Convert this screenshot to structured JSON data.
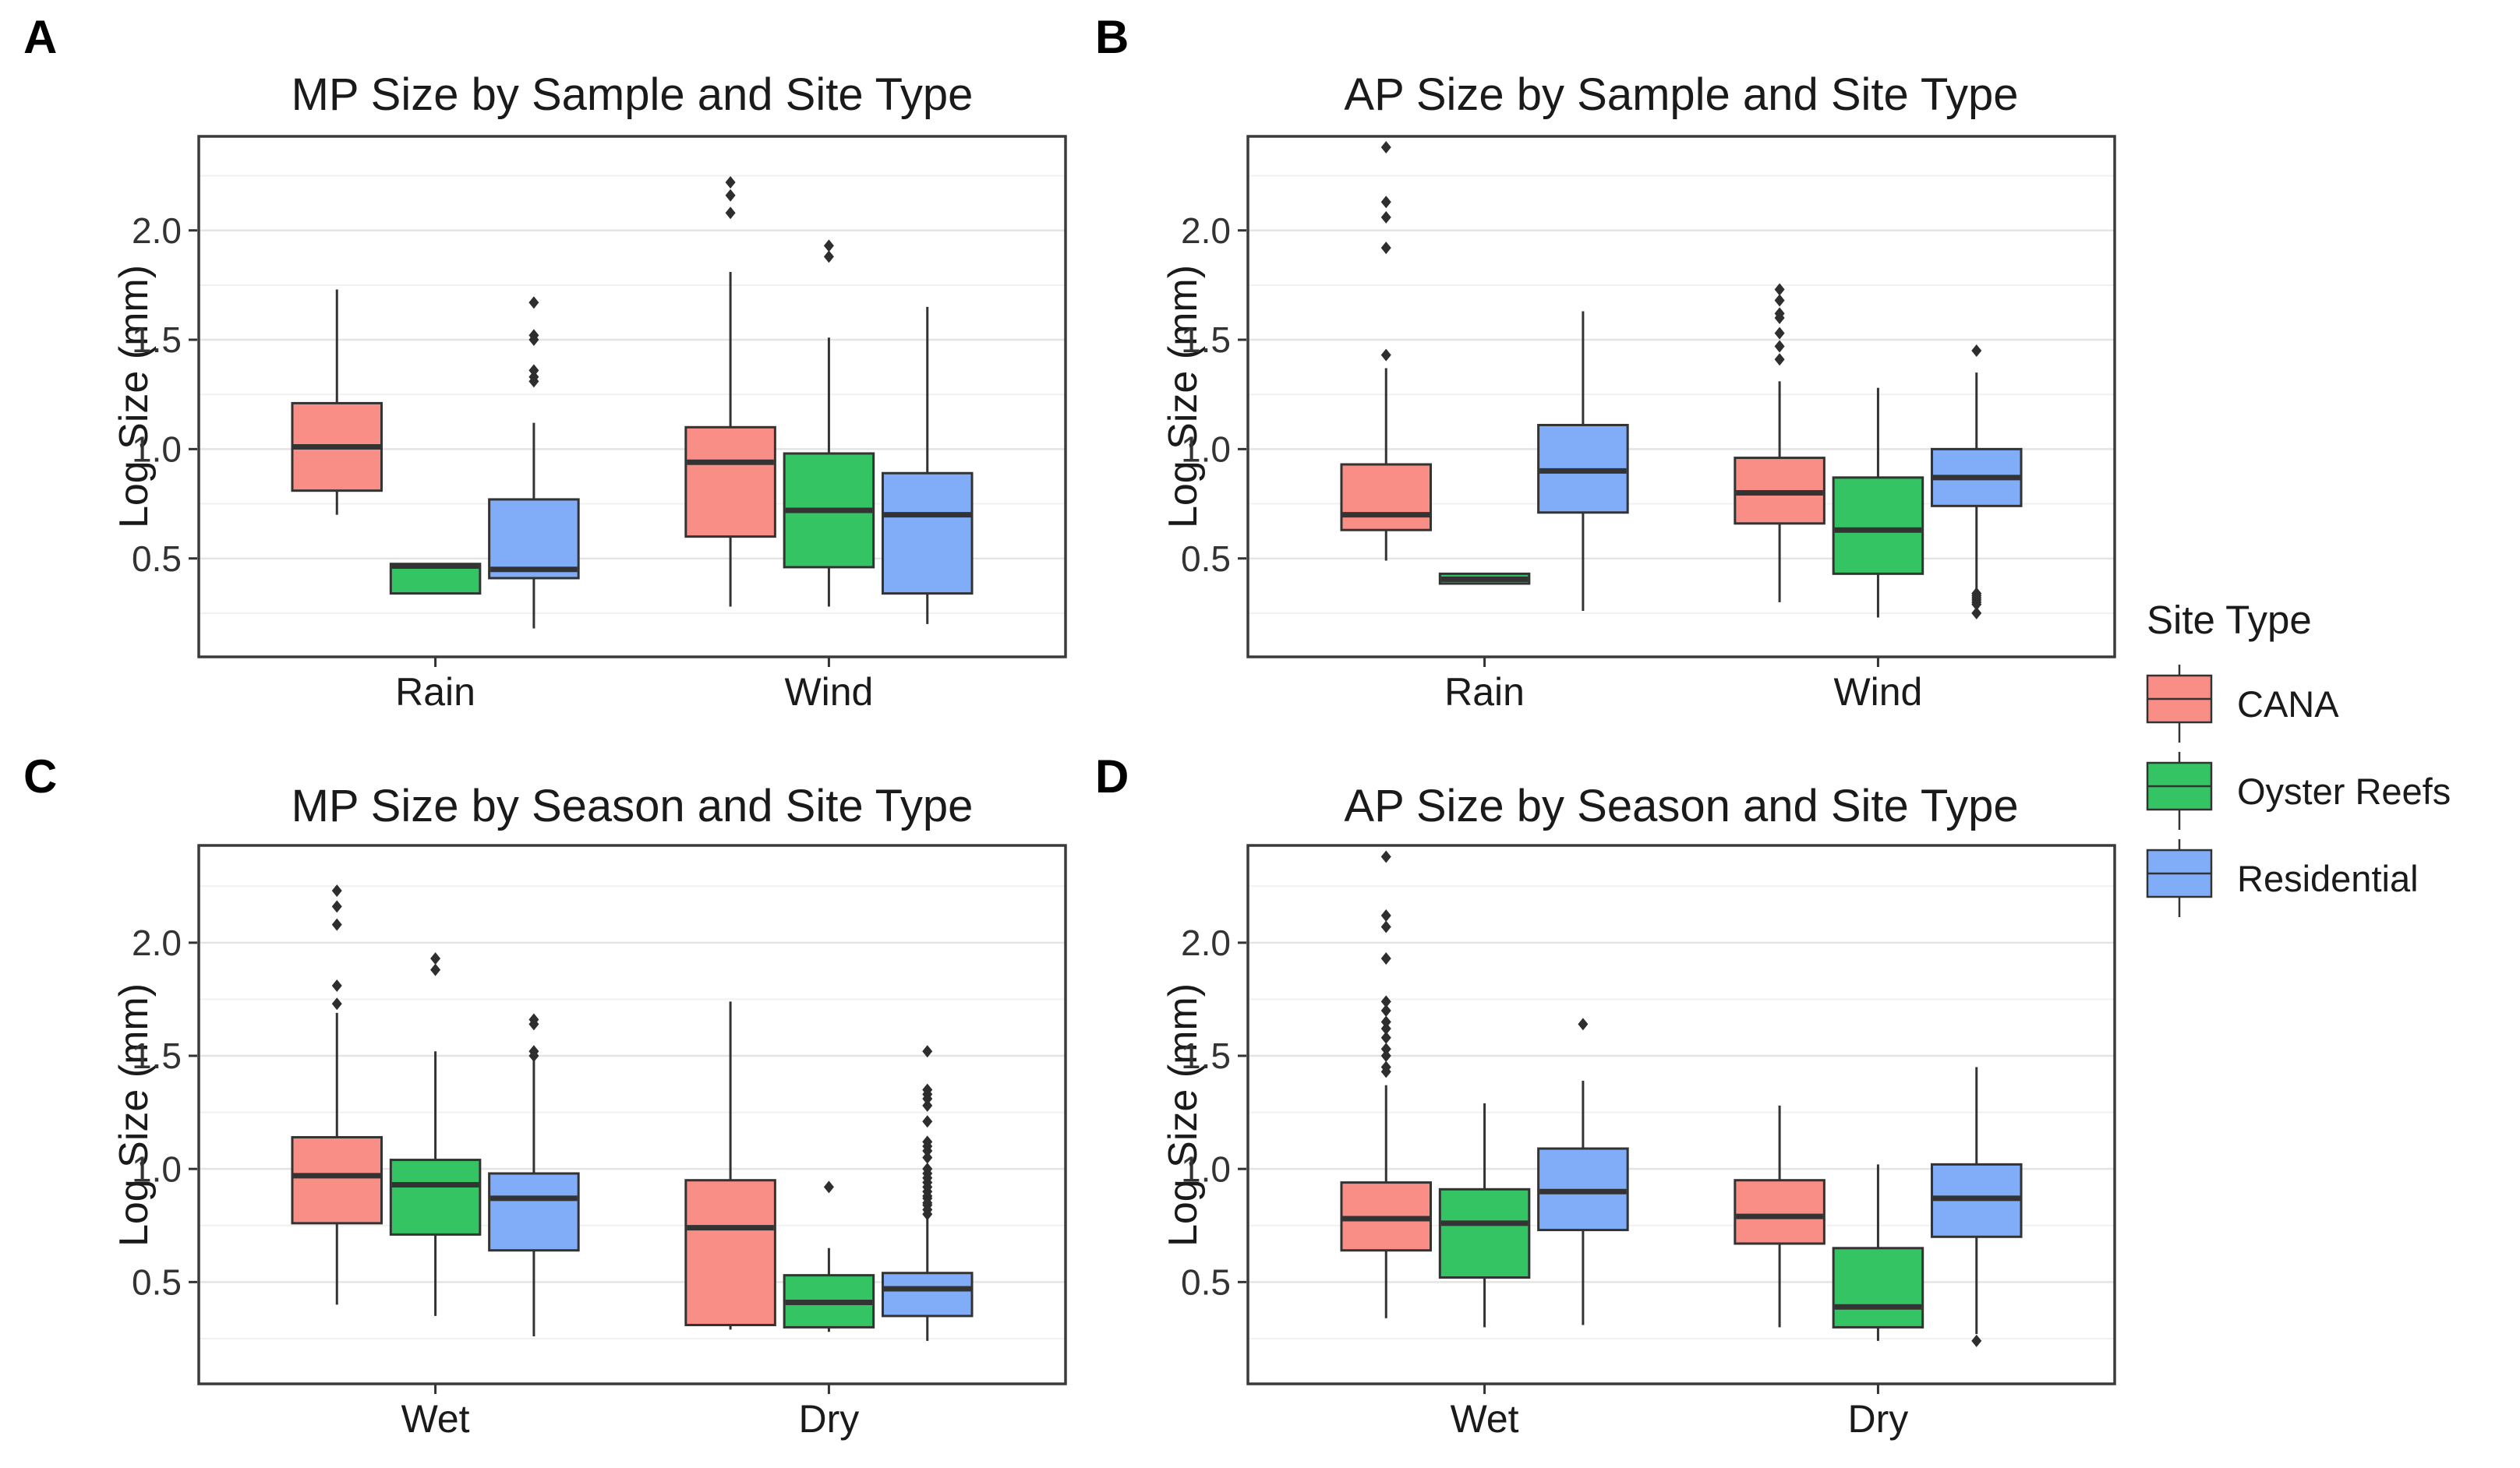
{
  "chart_data": {
    "type": "boxplot",
    "axis": {
      "ylabel": "Log Size (mm)",
      "tick_labels": [
        "0.5",
        "1.0",
        "1.5",
        "2.0"
      ],
      "tick_values": [
        0.5,
        1.0,
        1.5,
        2.0
      ],
      "minor_tick_values": [
        0.25,
        0.75,
        1.25,
        1.75,
        2.25
      ],
      "ylim": [
        0.05,
        2.43
      ],
      "grid": "major+minor, horizontal only"
    },
    "site_types": [
      "CANA",
      "Oyster Reefs",
      "Residential"
    ],
    "colors": {
      "cana": "#F88E85",
      "oyster_reefs": "#35C463",
      "residential": "#81ADF8",
      "box_stroke": "#333333",
      "median": "#333333",
      "outlier": "#2E2E2E",
      "panel_border": "#3A3A3A",
      "grid_major": "#E4E4E4",
      "grid_minor": "#F1F1F1"
    },
    "panels": [
      {
        "letter": "A",
        "title": "MP Size by Sample and Site Type",
        "x_categories": [
          "Rain",
          "Wind"
        ],
        "groups": [
          {
            "category": "Rain",
            "boxes": [
              {
                "site": "CANA",
                "low": 0.7,
                "q1": 0.81,
                "median": 1.01,
                "q3": 1.21,
                "high": 1.73,
                "outliers": []
              },
              {
                "site": "Oyster Reefs",
                "low": 0.34,
                "q1": 0.34,
                "median": 0.465,
                "q3": 0.475,
                "high": 0.475,
                "outliers": []
              },
              {
                "site": "Residential",
                "low": 0.18,
                "q1": 0.41,
                "median": 0.45,
                "q3": 0.77,
                "high": 1.12,
                "outliers": [
                  1.31,
                  1.33,
                  1.36,
                  1.5,
                  1.52,
                  1.67
                ]
              }
            ]
          },
          {
            "category": "Wind",
            "boxes": [
              {
                "site": "CANA",
                "low": 0.28,
                "q1": 0.6,
                "median": 0.94,
                "q3": 1.1,
                "high": 1.81,
                "outliers": [
                  2.08,
                  2.16,
                  2.22
                ]
              },
              {
                "site": "Oyster Reefs",
                "low": 0.28,
                "q1": 0.46,
                "median": 0.72,
                "q3": 0.98,
                "high": 1.51,
                "outliers": [
                  1.88,
                  1.93
                ]
              },
              {
                "site": "Residential",
                "low": 0.2,
                "q1": 0.34,
                "median": 0.7,
                "q3": 0.89,
                "high": 1.65,
                "outliers": []
              }
            ]
          }
        ]
      },
      {
        "letter": "B",
        "title": "AP Size by Sample and Site Type",
        "x_categories": [
          "Rain",
          "Wind"
        ],
        "groups": [
          {
            "category": "Rain",
            "boxes": [
              {
                "site": "CANA",
                "low": 0.49,
                "q1": 0.63,
                "median": 0.7,
                "q3": 0.93,
                "high": 1.37,
                "outliers": [
                  1.43,
                  1.92,
                  2.06,
                  2.13,
                  2.38
                ]
              },
              {
                "site": "Oyster Reefs",
                "low": 0.385,
                "q1": 0.385,
                "median": 0.405,
                "q3": 0.43,
                "high": 0.43,
                "outliers": []
              },
              {
                "site": "Residential",
                "low": 0.26,
                "q1": 0.71,
                "median": 0.9,
                "q3": 1.11,
                "high": 1.63,
                "outliers": []
              }
            ]
          },
          {
            "category": "Wind",
            "boxes": [
              {
                "site": "CANA",
                "low": 0.3,
                "q1": 0.66,
                "median": 0.8,
                "q3": 0.96,
                "high": 1.31,
                "outliers": [
                  1.41,
                  1.47,
                  1.53,
                  1.6,
                  1.62,
                  1.68,
                  1.73
                ]
              },
              {
                "site": "Oyster Reefs",
                "low": 0.23,
                "q1": 0.43,
                "median": 0.63,
                "q3": 0.87,
                "high": 1.28,
                "outliers": []
              },
              {
                "site": "Residential",
                "low": 0.36,
                "q1": 0.74,
                "median": 0.87,
                "q3": 1.0,
                "high": 1.35,
                "outliers": [
                  0.25,
                  0.29,
                  0.3,
                  0.31,
                  0.32,
                  0.33,
                  0.34,
                  1.45
                ]
              }
            ]
          }
        ]
      },
      {
        "letter": "C",
        "title": "MP Size by Season and Site Type",
        "x_categories": [
          "Wet",
          "Dry"
        ],
        "groups": [
          {
            "category": "Wet",
            "boxes": [
              {
                "site": "CANA",
                "low": 0.4,
                "q1": 0.76,
                "median": 0.97,
                "q3": 1.14,
                "high": 1.69,
                "outliers": [
                  1.73,
                  1.81,
                  2.08,
                  2.16,
                  2.23
                ]
              },
              {
                "site": "Oyster Reefs",
                "low": 0.35,
                "q1": 0.71,
                "median": 0.93,
                "q3": 1.04,
                "high": 1.52,
                "outliers": [
                  1.88,
                  1.93
                ]
              },
              {
                "site": "Residential",
                "low": 0.26,
                "q1": 0.64,
                "median": 0.87,
                "q3": 0.98,
                "high": 1.48,
                "outliers": [
                  1.5,
                  1.52,
                  1.64,
                  1.66
                ]
              }
            ]
          },
          {
            "category": "Dry",
            "boxes": [
              {
                "site": "CANA",
                "low": 0.29,
                "q1": 0.31,
                "median": 0.74,
                "q3": 0.95,
                "high": 1.74,
                "outliers": []
              },
              {
                "site": "Oyster Reefs",
                "low": 0.28,
                "q1": 0.3,
                "median": 0.41,
                "q3": 0.53,
                "high": 0.65,
                "outliers": [
                  0.92
                ]
              },
              {
                "site": "Residential",
                "low": 0.24,
                "q1": 0.35,
                "median": 0.47,
                "q3": 0.54,
                "high": 0.79,
                "outliers": [
                  0.8,
                  0.82,
                  0.84,
                  0.85,
                  0.87,
                  0.88,
                  0.9,
                  0.92,
                  0.94,
                  0.96,
                  0.98,
                  1.0,
                  1.05,
                  1.08,
                  1.1,
                  1.12,
                  1.21,
                  1.28,
                  1.31,
                  1.33,
                  1.35,
                  1.52
                ]
              }
            ]
          }
        ]
      },
      {
        "letter": "D",
        "title": "AP Size by Season and Site Type",
        "x_categories": [
          "Wet",
          "Dry"
        ],
        "groups": [
          {
            "category": "Wet",
            "boxes": [
              {
                "site": "CANA",
                "low": 0.34,
                "q1": 0.64,
                "median": 0.78,
                "q3": 0.94,
                "high": 1.37,
                "outliers": [
                  1.43,
                  1.45,
                  1.5,
                  1.53,
                  1.58,
                  1.62,
                  1.65,
                  1.7,
                  1.74,
                  1.93,
                  2.07,
                  2.12,
                  2.38
                ]
              },
              {
                "site": "Oyster Reefs",
                "low": 0.3,
                "q1": 0.52,
                "median": 0.76,
                "q3": 0.91,
                "high": 1.29,
                "outliers": []
              },
              {
                "site": "Residential",
                "low": 0.31,
                "q1": 0.73,
                "median": 0.9,
                "q3": 1.09,
                "high": 1.39,
                "outliers": [
                  1.64
                ]
              }
            ]
          },
          {
            "category": "Dry",
            "boxes": [
              {
                "site": "CANA",
                "low": 0.3,
                "q1": 0.67,
                "median": 0.79,
                "q3": 0.95,
                "high": 1.28,
                "outliers": []
              },
              {
                "site": "Oyster Reefs",
                "low": 0.24,
                "q1": 0.3,
                "median": 0.39,
                "q3": 0.65,
                "high": 1.02,
                "outliers": []
              },
              {
                "site": "Residential",
                "low": 0.27,
                "q1": 0.7,
                "median": 0.87,
                "q3": 1.02,
                "high": 1.45,
                "outliers": [
                  0.24
                ]
              }
            ]
          }
        ]
      }
    ],
    "legend": {
      "title": "Site Type",
      "entries": [
        {
          "label": "CANA",
          "color": "#F88E85"
        },
        {
          "label": "Oyster Reefs",
          "color": "#35C463"
        },
        {
          "label": "Residential",
          "color": "#81ADF8"
        }
      ]
    }
  }
}
